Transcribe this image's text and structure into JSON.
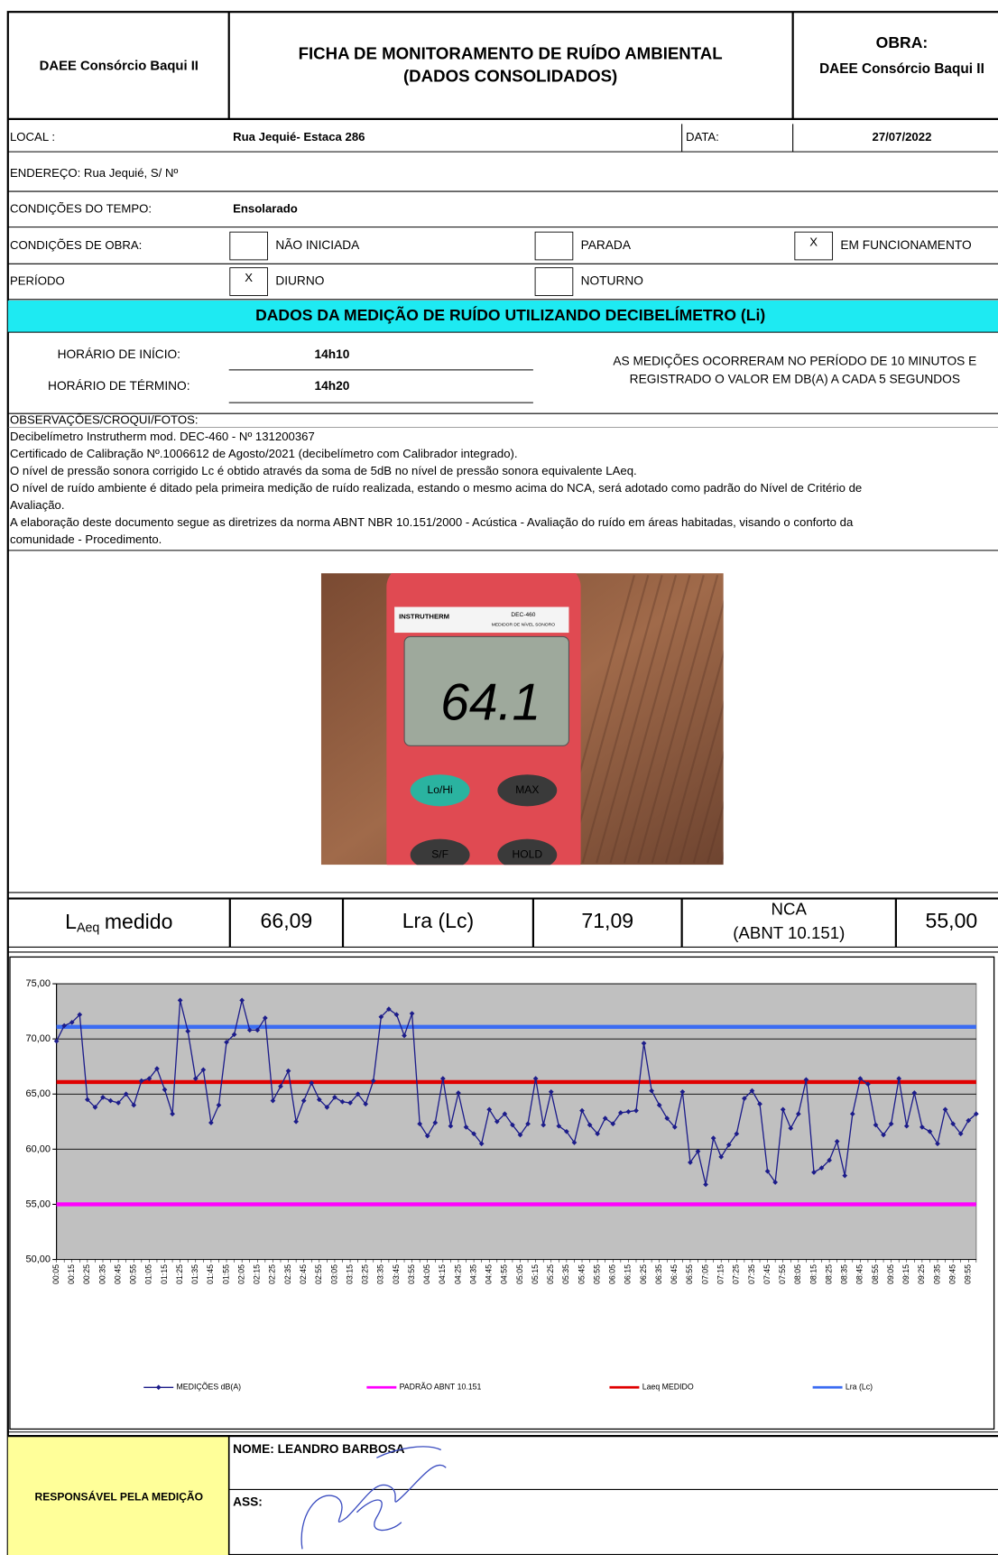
{
  "header": {
    "company": "DAEE Consórcio Baqui II",
    "title": [
      "FICHA DE MONITORAMENTO DE RUÍDO AMBIENTAL",
      "(DADOS CONSOLIDADOS)"
    ],
    "obra_label": "OBRA:",
    "obra": "DAEE Consórcio Baqui II"
  },
  "info": {
    "local_label": "LOCAL :",
    "local": "Rua Jequié- Estaca 286",
    "data_label": "DATA:",
    "data": "27/07/2022",
    "endereco": "ENDEREÇO:  Rua Jequié, S/ Nº",
    "tempo_label": "CONDIÇÕES DO TEMPO:",
    "tempo": "Ensolarado",
    "obra_label": "CONDIÇÕES DE OBRA:",
    "obra_options": [
      {
        "label": "NÃO INICIADA"
      },
      {
        "label": "PARADA"
      },
      {
        "label": "EM FUNCIONAMENTO",
        "mark": "X"
      }
    ],
    "periodo_label": "PERÍODO",
    "periodo_options": [
      {
        "label": "DIURNO",
        "mark": "X"
      },
      {
        "label": "NOTURNO"
      }
    ]
  },
  "section_title": "DADOS DA MEDIÇÃO DE RUÍDO UTILIZANDO DECIBELÍMETRO (Li)",
  "measurement": {
    "start_label": "HORÁRIO DE INÍCIO:",
    "start": "14h10",
    "end_label": "HORÁRIO DE TÉRMINO:",
    "end": "14h20",
    "note": [
      "AS MEDIÇÕES OCORRERAM NO PERÍODO DE 10 MINUTOS E",
      "REGISTRADO O VALOR EM DB(A) A CADA 5 SEGUNDOS"
    ]
  },
  "observations": {
    "title": "OBSERVAÇÕES/CROQUI/FOTOS:",
    "lines": [
      "Decibelímetro Instrutherm mod. DEC-460 - Nº 131200367",
      "Certificado de Calibração Nº.1006612 de Agosto/2021 (decibelímetro com Calibrador integrado).",
      "O nível de pressão sonora corrigido Lc é obtido através da soma de 5dB no nível de pressão sonora equivalente LAeq.",
      "O nível de ruído ambiente é ditado pela primeira medição de ruído realizada, estando o mesmo acima do NCA, será adotado como padrão do Nível de Critério de",
      "Avaliação.",
      "A elaboração deste documento segue as diretrizes da norma ABNT NBR 10.151/2000 - Acústica - Avaliação do ruído em áreas habitadas, visando o conforto da",
      "comunidade - Procedimento."
    ]
  },
  "photo": {
    "brand": "INSTRUTHERM",
    "model": "DEC-460",
    "caption": "MEDIDOR DE NÍVEL SONORO",
    "reading": "64.1",
    "buttons": [
      "Lo/Hi",
      "MAX",
      "S/F",
      "HOLD"
    ]
  },
  "summary": {
    "laeq": {
      "symbol": "L",
      "sub": "Aeq",
      "rest": "medido"
    },
    "laeq_value": "66,09",
    "lra_label": "Lra (Lc)",
    "lra_value": "71,09",
    "nca_label": [
      "NCA",
      "(ABNT 10.151)"
    ],
    "nca_value": "55,00"
  },
  "chart_data": {
    "type": "line",
    "categories": [
      "00:05",
      null,
      "00:15",
      null,
      "00:25",
      null,
      "00:35",
      null,
      "00:45",
      null,
      "00:55",
      null,
      "01:05",
      null,
      "01:15",
      null,
      "01:25",
      null,
      "01:35",
      null,
      "01:45",
      null,
      "01:55",
      null,
      "02:05",
      null,
      "02:15",
      null,
      "02:25",
      null,
      "02:35",
      null,
      "02:45",
      null,
      "02:55",
      null,
      "03:05",
      null,
      "03:15",
      null,
      "03:25",
      null,
      "03:35",
      null,
      "03:45",
      null,
      "03:55",
      null,
      "04:05",
      null,
      "04:15",
      null,
      "04:25",
      null,
      "04:35",
      null,
      "04:45",
      null,
      "04:55",
      null,
      "05:05",
      null,
      "05:15",
      null,
      "05:25",
      null,
      "05:35",
      null,
      "05:45",
      null,
      "05:55",
      null,
      "06:05",
      null,
      "06:15",
      null,
      "06:25",
      null,
      "06:35",
      null,
      "06:45",
      null,
      "06:55",
      null,
      "07:05",
      null,
      "07:15",
      null,
      "07:25",
      null,
      "07:35",
      null,
      "07:45",
      null,
      "07:55",
      null,
      "08:05",
      null,
      "08:15",
      null,
      "08:25",
      null,
      "08:35",
      null,
      "08:45",
      null,
      "08:55",
      null,
      "09:05",
      null,
      "09:15",
      null,
      "09:25",
      null,
      "09:35",
      null,
      "09:45",
      null,
      "09:55",
      null
    ],
    "series": [
      {
        "name": "MEDIÇÕES dB(A)",
        "color": "#1c1c8a",
        "values": [
          69.8,
          71.2,
          71.5,
          72.2,
          64.5,
          63.8,
          64.7,
          64.4,
          64.2,
          65.0,
          64.0,
          66.2,
          66.4,
          67.3,
          65.4,
          63.2,
          73.5,
          70.7,
          66.4,
          67.2,
          62.4,
          64.0,
          69.7,
          70.4,
          73.5,
          70.8,
          70.8,
          71.9,
          64.4,
          65.7,
          67.1,
          62.5,
          64.4,
          66.0,
          64.5,
          63.8,
          64.7,
          64.3,
          64.2,
          65.0,
          64.1,
          66.2,
          72.0,
          72.7,
          72.2,
          70.3,
          72.3,
          62.3,
          61.2,
          62.4,
          66.4,
          62.1,
          65.1,
          62.0,
          61.4,
          60.5,
          63.6,
          62.5,
          63.2,
          62.2,
          61.3,
          62.3,
          66.4,
          62.2,
          65.2,
          62.1,
          61.6,
          60.6,
          63.5,
          62.2,
          61.4,
          62.8,
          62.3,
          63.3,
          63.4,
          63.5,
          69.6,
          65.3,
          64.0,
          62.8,
          62.0,
          65.2,
          58.8,
          59.8,
          56.8,
          61.0,
          59.3,
          60.4,
          61.4,
          64.6,
          65.3,
          64.1,
          58.0,
          57.0,
          63.6,
          61.9,
          63.2,
          66.3,
          57.9,
          58.3,
          59.0,
          60.7,
          57.6,
          63.2,
          66.4,
          65.9,
          62.2,
          61.3,
          62.3,
          66.4,
          62.1,
          65.1,
          62.0,
          61.6,
          60.5,
          63.6,
          62.3,
          61.4,
          62.6,
          63.2
        ]
      }
    ],
    "reference_lines": [
      {
        "name": "PADRÃO ABNT 10.151",
        "color": "#ff00ff",
        "value": 55
      },
      {
        "name": "Laeq MEDIDO",
        "color": "#e00000",
        "value": 66.09
      },
      {
        "name": "Lra (Lc)",
        "color": "#3b6cf2",
        "value": 71.09
      }
    ],
    "ylim": [
      50,
      75
    ],
    "yticks": [
      {
        "value": 50,
        "label": "50,00"
      },
      {
        "value": 55,
        "label": "55,00"
      },
      {
        "value": 60,
        "label": "60,00"
      },
      {
        "value": 65,
        "label": "65,00"
      },
      {
        "value": 70,
        "label": "70,00"
      },
      {
        "value": 75,
        "label": "75,00"
      }
    ],
    "grid": true,
    "legend": "bottom"
  },
  "footer": {
    "responsible": "RESPONSÁVEL PELA MEDIÇÃO",
    "name": "NOME: LEANDRO BARBOSA",
    "signature_label": "ASS:"
  }
}
